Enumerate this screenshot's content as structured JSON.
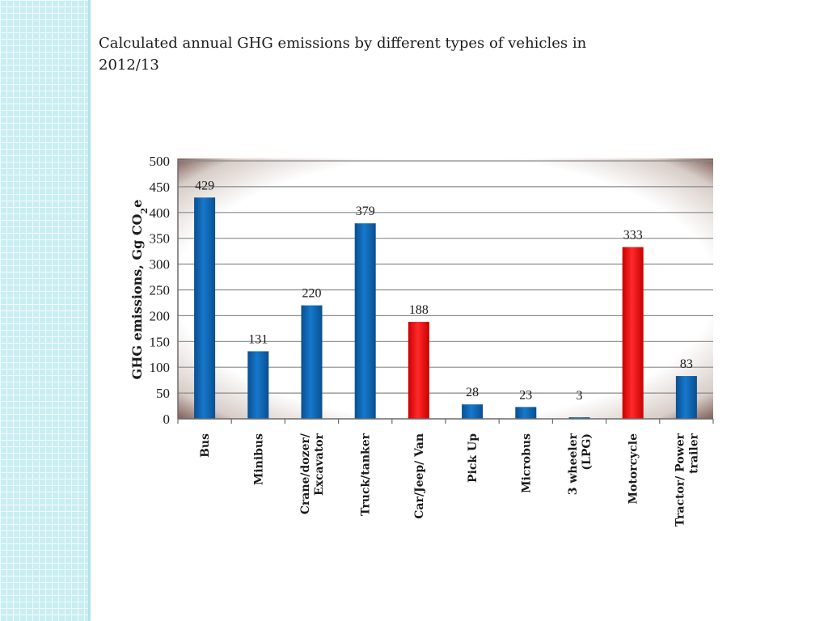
{
  "slide": {
    "title": "Calculated annual GHG emissions by different types of vehicles in 2012/13"
  },
  "colors": {
    "blue": "#0a66b6",
    "red": "#f70d0d",
    "strip": "#c9eef2"
  },
  "chart_data": {
    "type": "bar",
    "title": "",
    "xlabel": "",
    "ylabel": "GHG emissions, Gg CO2e",
    "ylim": [
      0,
      500
    ],
    "yticks": [
      0,
      50,
      100,
      150,
      200,
      250,
      300,
      350,
      400,
      450,
      500
    ],
    "grid": true,
    "categories": [
      [
        "Bus"
      ],
      [
        "Minibus"
      ],
      [
        "Crane/dozer/",
        "Excavator"
      ],
      [
        "Truck/tanker"
      ],
      [
        "Car/Jeep/ Van"
      ],
      [
        "Pick Up"
      ],
      [
        "Microbus"
      ],
      [
        "3 wheeler",
        "(LPG)"
      ],
      [
        "Motorcycle"
      ],
      [
        "Tractor/ Power",
        "trailer"
      ]
    ],
    "values": [
      429,
      131,
      220,
      379,
      188,
      28,
      23,
      3,
      333,
      83
    ],
    "data_labels": [
      "429",
      "131",
      "220",
      "379",
      "188",
      "28",
      "23",
      "3",
      "333",
      "83"
    ],
    "bar_colors": [
      "blue",
      "blue",
      "blue",
      "blue",
      "red",
      "blue",
      "blue",
      "blue",
      "red",
      "blue"
    ]
  }
}
